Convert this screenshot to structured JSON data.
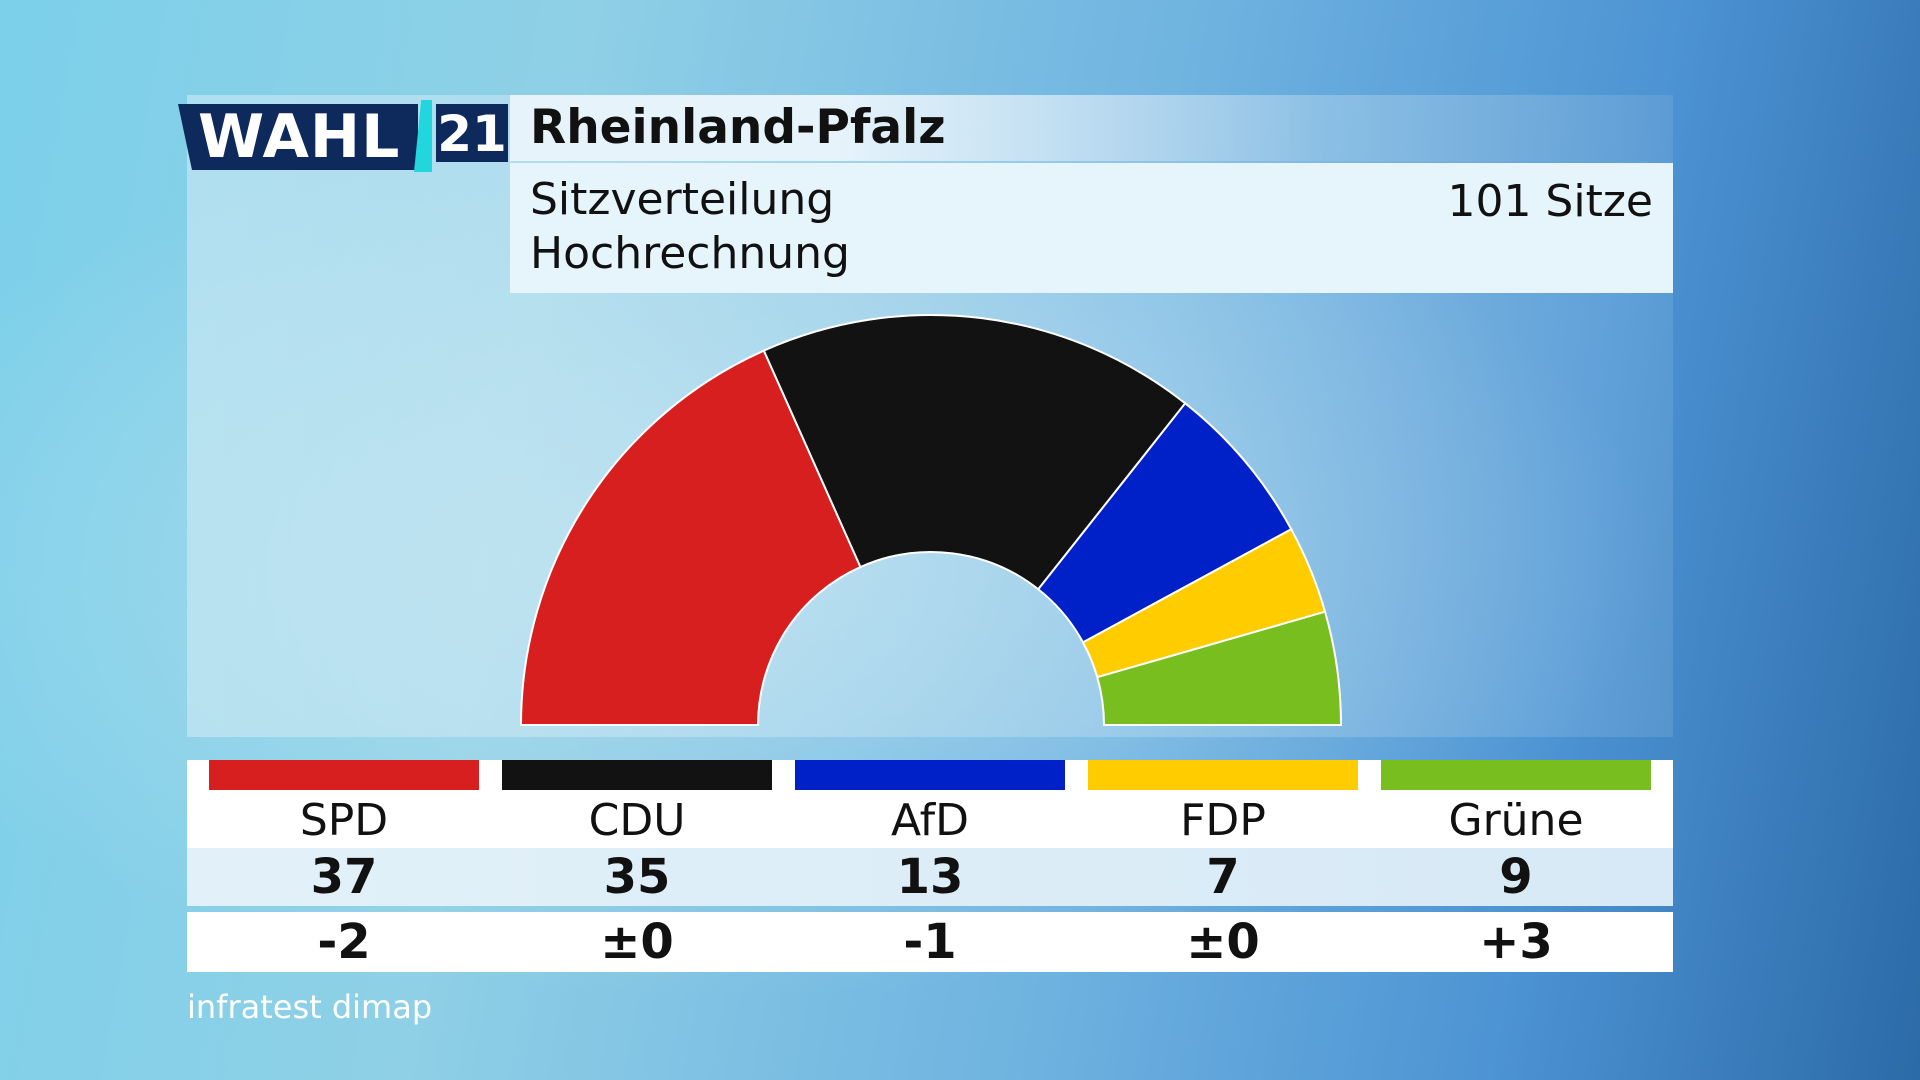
{
  "logo": {
    "word": "WAHL",
    "year": "21"
  },
  "header": {
    "title": "Rheinland-Pfalz",
    "subtitle_line1": "Sitzverteilung",
    "subtitle_line2": "Hochrechnung",
    "total_seats": "101 Sitze"
  },
  "chart_data": {
    "type": "pie",
    "shape": "semicircle",
    "title": "Rheinland-Pfalz",
    "total": 101,
    "series": [
      {
        "name": "SPD",
        "seats": 37,
        "change": "-2",
        "color": "#d71f1f"
      },
      {
        "name": "CDU",
        "seats": 35,
        "change": "±0",
        "color": "#121212"
      },
      {
        "name": "AfD",
        "seats": 13,
        "change": "-1",
        "color": "#0021c8"
      },
      {
        "name": "FDP",
        "seats": 7,
        "change": "±0",
        "color": "#ffcc00"
      },
      {
        "name": "Grüne",
        "seats": 9,
        "change": "+3",
        "color": "#78be1e"
      }
    ]
  },
  "source": "infratest dimap"
}
